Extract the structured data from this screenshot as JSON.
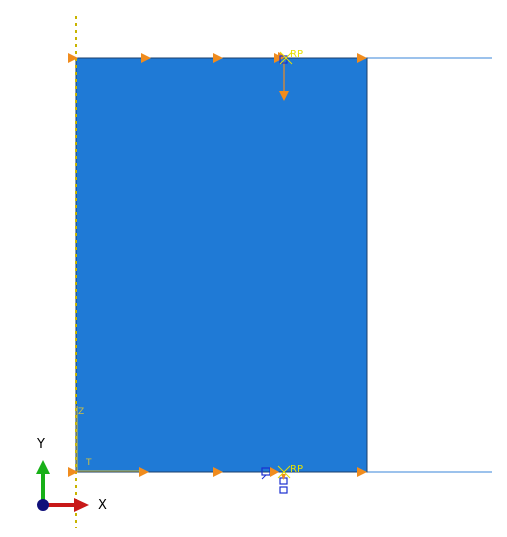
{
  "viewport": {
    "background": "#ffffff"
  },
  "model": {
    "part_fill": "#1f7ad6",
    "part_edge": "#1b3f6b",
    "rigid_line_color": "#3a86d8",
    "symmetry_axis_color": "#c8b400"
  },
  "reference_points": {
    "top": {
      "label": "RP",
      "color": "#e8e000"
    },
    "bottom": {
      "label": "RP",
      "color": "#e8e000"
    }
  },
  "load_marker_color": "#f08c1e",
  "bc_marker_color": "#1c2fd0",
  "local_csys": {
    "t_label": "T",
    "z_label": "Z",
    "color": "#d0c040"
  },
  "triad": {
    "x_label": "X",
    "y_label": "Y",
    "x_color": "#c81818",
    "y_color": "#18b018",
    "origin_color": "#10107a"
  }
}
